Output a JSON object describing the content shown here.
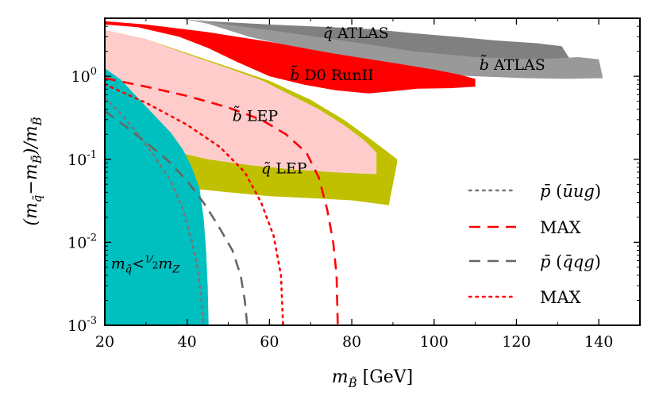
{
  "chart_data": {
    "type": "line",
    "xlabel": "m_B̃ [GeV]",
    "xlabel_parts": {
      "main": "m",
      "sub": "B̃",
      "unit": "[GeV]"
    },
    "ylabel": "(m_q̃ − m_B̃)/m_B̃",
    "ylabel_parts": {
      "open": "(m",
      "sub1": "q̃",
      "minus": "−m",
      "sub2": "B̃",
      "close": ")/m",
      "sub3": "B̃"
    },
    "xlim": [
      20,
      150
    ],
    "ylim": [
      0.001,
      5
    ],
    "yscale": "log",
    "xticks": [
      20,
      40,
      60,
      80,
      100,
      120,
      140
    ],
    "xtick_labels": [
      "20",
      "40",
      "60",
      "80",
      "100",
      "120",
      "140"
    ],
    "yticks": [
      0.001,
      0.01,
      0.1,
      1
    ],
    "ytick_labels": [
      {
        "base": "10",
        "exp": "-3"
      },
      {
        "base": "10",
        "exp": "-2"
      },
      {
        "base": "10",
        "exp": "-1"
      },
      {
        "base": "10",
        "exp": "0"
      }
    ],
    "regions": [
      {
        "id": "q-atlas",
        "label": "q̃ ATLAS",
        "label_parts": {
          "sym": "q̃",
          "text": "ATLAS"
        },
        "color": "#808080",
        "label_at": [
          73,
          2.9
        ],
        "boundary": [
          [
            41,
            5
          ],
          [
            45,
            4.6
          ],
          [
            60,
            4.2
          ],
          [
            75,
            3.9
          ],
          [
            85,
            3.7
          ],
          [
            95,
            3.3
          ],
          [
            105,
            3
          ],
          [
            115,
            2.7
          ],
          [
            125,
            2.5
          ],
          [
            131,
            2.3
          ],
          [
            133,
            1.6
          ],
          [
            125,
            1.55
          ],
          [
            115,
            1.5
          ],
          [
            105,
            1.5
          ],
          [
            95,
            1.55
          ],
          [
            85,
            1.75
          ],
          [
            75,
            2.1
          ],
          [
            65,
            2.7
          ],
          [
            55,
            3.4
          ],
          [
            45,
            4.5
          ]
        ]
      },
      {
        "id": "b-atlas",
        "label": "b̃ ATLAS",
        "label_parts": {
          "sym": "b̃",
          "text": "ATLAS"
        },
        "color": "#999999",
        "label_at": [
          111,
          1.2
        ],
        "boundary": [
          [
            38,
            5
          ],
          [
            60,
            3.6
          ],
          [
            80,
            2.6
          ],
          [
            95,
            2.0
          ],
          [
            110,
            1.7
          ],
          [
            125,
            1.6
          ],
          [
            135,
            1.7
          ],
          [
            140,
            1.6
          ],
          [
            141,
            0.95
          ],
          [
            132,
            0.93
          ],
          [
            122,
            0.95
          ],
          [
            110,
            1.0
          ],
          [
            100,
            1.05
          ],
          [
            92,
            1.1
          ],
          [
            85,
            1.35
          ],
          [
            75,
            1.7
          ],
          [
            65,
            2.3
          ],
          [
            55,
            3.0
          ],
          [
            45,
            4.3
          ]
        ]
      },
      {
        "id": "b-d0",
        "label": "b̃ D0 RunII",
        "label_parts": {
          "sym": "b̃",
          "text": "D0 RunII"
        },
        "color": "#ff0000",
        "label_at": [
          65,
          0.9
        ],
        "boundary": [
          [
            20,
            4.6
          ],
          [
            30,
            4.2
          ],
          [
            45,
            3.4
          ],
          [
            60,
            2.6
          ],
          [
            75,
            1.9
          ],
          [
            90,
            1.45
          ],
          [
            100,
            1.2
          ],
          [
            106,
            1.05
          ],
          [
            110,
            0.93
          ],
          [
            110,
            0.75
          ],
          [
            104,
            0.72
          ],
          [
            96,
            0.71
          ],
          [
            90,
            0.66
          ],
          [
            84,
            0.62
          ],
          [
            76,
            0.68
          ],
          [
            68,
            0.8
          ],
          [
            60,
            1.0
          ],
          [
            52,
            1.5
          ],
          [
            45,
            2.2
          ],
          [
            38,
            3.0
          ],
          [
            28,
            3.9
          ],
          [
            20,
            4.2
          ]
        ]
      },
      {
        "id": "q-lep",
        "label": "q̃ LEP",
        "label_parts": {
          "sym": "q̃",
          "text": "LEP"
        },
        "color": "#c0c000",
        "label_at": [
          58,
          0.068
        ],
        "boundary": [
          [
            20,
            3.6
          ],
          [
            30,
            2.8
          ],
          [
            40,
            1.9
          ],
          [
            50,
            1.3
          ],
          [
            60,
            0.88
          ],
          [
            70,
            0.52
          ],
          [
            78,
            0.3
          ],
          [
            83,
            0.2
          ],
          [
            88,
            0.13
          ],
          [
            91,
            0.1
          ],
          [
            91,
            0.09
          ],
          [
            89,
            0.028
          ],
          [
            80,
            0.032
          ],
          [
            70,
            0.034
          ],
          [
            60,
            0.036
          ],
          [
            50,
            0.04
          ],
          [
            40,
            0.045
          ],
          [
            30,
            0.05
          ],
          [
            20,
            0.055
          ]
        ]
      },
      {
        "id": "b-lep",
        "label": "b̃ LEP",
        "label_parts": {
          "sym": "b̃",
          "text": "LEP"
        },
        "color": "#ffcccc",
        "label_at": [
          51,
          0.29
        ],
        "boundary": [
          [
            20,
            3.6
          ],
          [
            30,
            2.8
          ],
          [
            40,
            1.85
          ],
          [
            50,
            1.25
          ],
          [
            58,
            0.9
          ],
          [
            65,
            0.6
          ],
          [
            72,
            0.4
          ],
          [
            78,
            0.26
          ],
          [
            83,
            0.17
          ],
          [
            86,
            0.12
          ],
          [
            86,
            0.066
          ],
          [
            75,
            0.07
          ],
          [
            65,
            0.076
          ],
          [
            55,
            0.085
          ],
          [
            45,
            0.1
          ],
          [
            35,
            0.13
          ],
          [
            20,
            0.18
          ]
        ]
      },
      {
        "id": "z-width",
        "label": "m_q̃ < ½ m_Z",
        "label_parts": {
          "m": "m",
          "sub": "q̃",
          "lt": "<",
          "num": "1",
          "den": "2",
          "m2": "m",
          "sub2": "Z"
        },
        "color": "#00bfbf",
        "label_at": [
          21.5,
          0.0048
        ],
        "boundary": [
          [
            20,
            0.001
          ],
          [
            20,
            1.25
          ],
          [
            24,
            0.9
          ],
          [
            28,
            0.55
          ],
          [
            32,
            0.34
          ],
          [
            36,
            0.21
          ],
          [
            39,
            0.13
          ],
          [
            41,
            0.083
          ],
          [
            43,
            0.045
          ],
          [
            44,
            0.02
          ],
          [
            44.6,
            0.008
          ],
          [
            45,
            0.003
          ],
          [
            45.2,
            0.001
          ]
        ]
      }
    ],
    "series": [
      {
        "name": "p̄ (ūug)",
        "legend_parts": {
          "p": "p̄",
          "open": "(",
          "content": "ūug",
          "close": ")"
        },
        "style": "dotted",
        "color": "#777777",
        "points": [
          [
            20,
            0.55
          ],
          [
            24,
            0.35
          ],
          [
            28,
            0.2
          ],
          [
            32,
            0.11
          ],
          [
            36,
            0.055
          ],
          [
            39,
            0.025
          ],
          [
            41,
            0.011
          ],
          [
            42.5,
            0.005
          ],
          [
            43.5,
            0.002
          ],
          [
            43.9,
            0.001
          ]
        ]
      },
      {
        "name": "MAX",
        "legend_parts": {
          "text": "MAX"
        },
        "style": "dashed",
        "color": "#ff0000",
        "points": [
          [
            20,
            0.95
          ],
          [
            30,
            0.75
          ],
          [
            40,
            0.58
          ],
          [
            50,
            0.42
          ],
          [
            58,
            0.3
          ],
          [
            64,
            0.2
          ],
          [
            69,
            0.12
          ],
          [
            72,
            0.06
          ],
          [
            74,
            0.025
          ],
          [
            75.5,
            0.01
          ],
          [
            76.3,
            0.004
          ],
          [
            76.6,
            0.001
          ]
        ]
      },
      {
        "name": "p̄ (q̄qg)",
        "legend_parts": {
          "p": "p̄",
          "open": "(",
          "content": "q̄qg",
          "close": ")"
        },
        "style": "dashed",
        "color": "#666666",
        "points": [
          [
            20,
            0.38
          ],
          [
            25,
            0.25
          ],
          [
            30,
            0.16
          ],
          [
            35,
            0.1
          ],
          [
            40,
            0.055
          ],
          [
            44,
            0.03
          ],
          [
            47.5,
            0.016
          ],
          [
            51,
            0.008
          ],
          [
            53,
            0.004
          ],
          [
            54,
            0.002
          ],
          [
            54.6,
            0.001
          ]
        ]
      },
      {
        "name": "MAX",
        "legend_parts": {
          "text": "MAX"
        },
        "style": "dotted",
        "color": "#ff0000",
        "points": [
          [
            20,
            0.8
          ],
          [
            30,
            0.48
          ],
          [
            40,
            0.26
          ],
          [
            48,
            0.14
          ],
          [
            54,
            0.07
          ],
          [
            58,
            0.03
          ],
          [
            61,
            0.012
          ],
          [
            62.8,
            0.004
          ],
          [
            63.3,
            0.001
          ]
        ]
      }
    ],
    "legend": {
      "placement": "lower-right"
    }
  }
}
